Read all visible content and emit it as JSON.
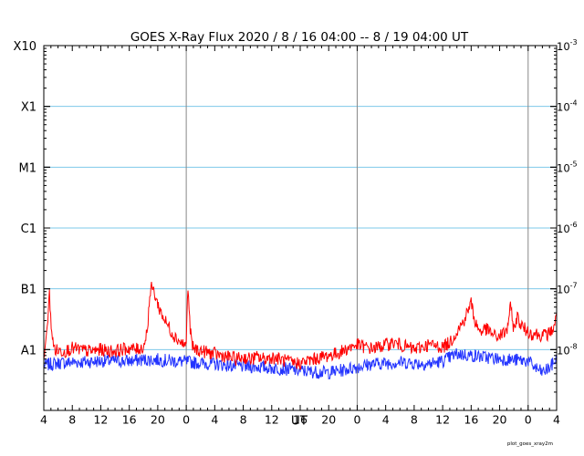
{
  "chart_data": {
    "type": "line",
    "title": "GOES X-Ray Flux   2020 /  8 / 16   04:00 --  8 / 19   04:00   UT",
    "xlabel": "UT",
    "x_unit": "hours UT from 2020-08-16 04:00",
    "xlim": [
      0,
      72
    ],
    "x_tick_values": [
      0,
      4,
      8,
      12,
      16,
      20,
      24,
      28,
      32,
      36,
      40,
      44,
      48,
      52,
      56,
      60,
      64,
      68,
      72
    ],
    "x_tick_labels": [
      "4",
      "8",
      "12",
      "16",
      "20",
      "0",
      "4",
      "8",
      "12",
      "16",
      "20",
      "0",
      "4",
      "8",
      "12",
      "16",
      "20",
      "0",
      "4"
    ],
    "day_boundaries": [
      20,
      44,
      68
    ],
    "y_scale": "log",
    "ylim": [
      1e-09,
      0.001
    ],
    "y_class_ticks": [
      {
        "value": 1e-08,
        "label": "A1"
      },
      {
        "value": 1e-07,
        "label": "B1"
      },
      {
        "value": 1e-06,
        "label": "C1"
      },
      {
        "value": 1e-05,
        "label": "M1"
      },
      {
        "value": 0.0001,
        "label": "X1"
      },
      {
        "value": 0.001,
        "label": "X10"
      }
    ],
    "y_right_ticks": [
      {
        "value": 1e-08,
        "mantissa": "10",
        "exponent": "-8"
      },
      {
        "value": 1e-07,
        "mantissa": "10",
        "exponent": "-7"
      },
      {
        "value": 1e-06,
        "mantissa": "10",
        "exponent": "-6"
      },
      {
        "value": 1e-05,
        "mantissa": "10",
        "exponent": "-5"
      },
      {
        "value": 0.0001,
        "mantissa": "10",
        "exponent": "-4"
      },
      {
        "value": 0.001,
        "mantissa": "10",
        "exponent": "-3"
      }
    ],
    "class_lines": [
      1e-08,
      1e-07,
      1e-06,
      1e-05,
      0.0001
    ],
    "series": [
      {
        "color": "#ff0000",
        "x": [
          0,
          0.3,
          0.6,
          0.8,
          1.0,
          1.3,
          1.6,
          2,
          3,
          4,
          5,
          6,
          7,
          8,
          9,
          10,
          11,
          12,
          13,
          14,
          14.5,
          14.9,
          15.2,
          15.6,
          16,
          16.5,
          17,
          17.5,
          18,
          18.5,
          19,
          19.5,
          20,
          20.1,
          20.3,
          20.5,
          20.8,
          21,
          22,
          23,
          24,
          25,
          26,
          27,
          28,
          29,
          30,
          31,
          32,
          33,
          34,
          35,
          36,
          37,
          38,
          39,
          40,
          41,
          42,
          43,
          44,
          45,
          46,
          47,
          48,
          49,
          50,
          51,
          52,
          53,
          54,
          55,
          56,
          57,
          58,
          59,
          60,
          60.5,
          61,
          61.5,
          62,
          62.5,
          63,
          63.5,
          64,
          65,
          65.5,
          66,
          66.5,
          67,
          67.5,
          68,
          68.5,
          69,
          69.5,
          70,
          70.5,
          71,
          71.5,
          72
        ],
        "values": [
          8.5e-09,
          1.2e-08,
          4e-08,
          8e-08,
          3e-08,
          1.2e-08,
          1e-08,
          9.5e-09,
          9.5e-09,
          1.05e-08,
          1e-08,
          9.5e-09,
          9.5e-09,
          1e-08,
          9.5e-09,
          9.5e-09,
          1e-08,
          1.05e-08,
          1e-08,
          1.1e-08,
          2e-08,
          8e-08,
          1.1e-07,
          8e-08,
          5.5e-08,
          4e-08,
          3e-08,
          2.4e-08,
          1.9e-08,
          1.6e-08,
          1.4e-08,
          1.25e-08,
          1.15e-08,
          5e-08,
          9.5e-08,
          2.5e-08,
          1.2e-08,
          1.05e-08,
          9.5e-09,
          9e-09,
          8.5e-09,
          8e-09,
          7.5e-09,
          7e-09,
          7.5e-09,
          7e-09,
          7.5e-09,
          7e-09,
          7.5e-09,
          7e-09,
          6.5e-09,
          6e-09,
          6e-09,
          6.5e-09,
          7e-09,
          7.5e-09,
          8e-09,
          8.5e-09,
          9.5e-09,
          1.1e-08,
          1.2e-08,
          1.1e-08,
          1.05e-08,
          1.1e-08,
          1.2e-08,
          1.3e-08,
          1.2e-08,
          1.1e-08,
          1e-08,
          1.1e-08,
          1.2e-08,
          1.15e-08,
          1.1e-08,
          1.3e-08,
          2e-08,
          3e-08,
          6e-08,
          3e-08,
          2.2e-08,
          2e-08,
          2.2e-08,
          2e-08,
          1.8e-08,
          1.6e-08,
          1.7e-08,
          2e-08,
          5e-08,
          2.2e-08,
          3.5e-08,
          2.5e-08,
          2.2e-08,
          2e-08,
          1.8e-08,
          1.9e-08,
          1.7e-08,
          1.8e-08,
          1.7e-08,
          1.9e-08,
          2.2e-08,
          3.5e-08
        ]
      },
      {
        "color": "#2233ff",
        "x": [
          0,
          2,
          4,
          6,
          8,
          10,
          12,
          14,
          16,
          18,
          20,
          22,
          24,
          26,
          28,
          30,
          32,
          34,
          36,
          38,
          40,
          42,
          44,
          46,
          48,
          50,
          52,
          54,
          56,
          58,
          60,
          62,
          64,
          66,
          68,
          69,
          70,
          71,
          72
        ],
        "values": [
          5.5e-09,
          6e-09,
          6.2e-09,
          6.3e-09,
          6.5e-09,
          6.5e-09,
          6.5e-09,
          6.8e-09,
          6.8e-09,
          6.5e-09,
          6.3e-09,
          6e-09,
          5.8e-09,
          5.5e-09,
          5.3e-09,
          5.2e-09,
          5e-09,
          4.8e-09,
          4.5e-09,
          4.3e-09,
          4.2e-09,
          4.6e-09,
          5.2e-09,
          5.8e-09,
          6e-09,
          6.2e-09,
          6e-09,
          5.8e-09,
          6.5e-09,
          8.5e-09,
          8e-09,
          7.5e-09,
          7e-09,
          6.8e-09,
          6.5e-09,
          5e-09,
          4.2e-09,
          5e-09,
          7e-09
        ]
      }
    ],
    "footer_note": "plot_goes_xray2m"
  }
}
